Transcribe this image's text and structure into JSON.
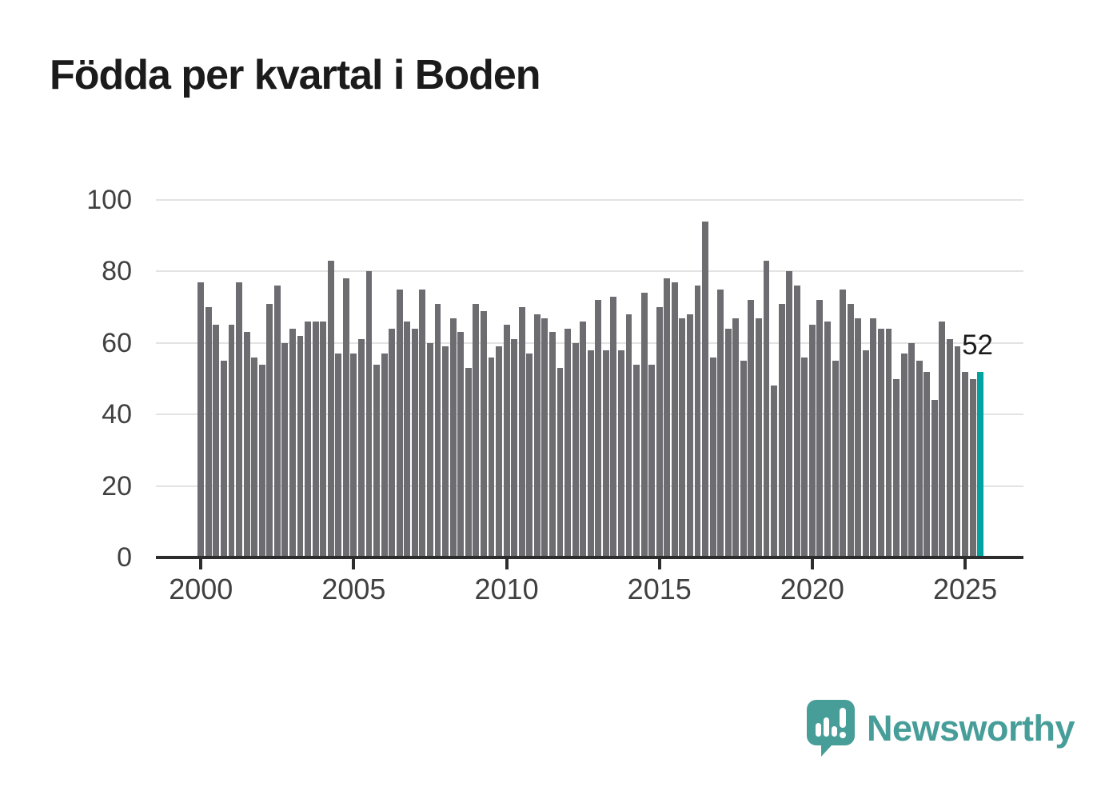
{
  "title": "Födda per kvartal i Boden",
  "chart_data": {
    "type": "bar",
    "title": "Födda per kvartal i Boden",
    "xlabel": "",
    "ylabel": "",
    "ylim": [
      0,
      100
    ],
    "y_ticks": [
      0,
      20,
      40,
      60,
      80,
      100
    ],
    "x_tick_labels": [
      "2000",
      "2005",
      "2010",
      "2015",
      "2020",
      "2025"
    ],
    "grid": "horizontal",
    "period": "quarterly",
    "start_quarter": "2000-Q1",
    "end_quarter": "2025-Q3",
    "series": [
      {
        "name": "Födda per kvartal",
        "values": [
          77,
          70,
          65,
          55,
          65,
          77,
          63,
          56,
          54,
          71,
          76,
          60,
          64,
          62,
          66,
          66,
          66,
          83,
          57,
          78,
          57,
          61,
          80,
          54,
          57,
          64,
          75,
          66,
          64,
          75,
          60,
          71,
          59,
          67,
          63,
          53,
          71,
          69,
          56,
          59,
          65,
          61,
          70,
          57,
          68,
          67,
          63,
          53,
          64,
          60,
          66,
          58,
          72,
          58,
          73,
          58,
          68,
          54,
          74,
          54,
          70,
          78,
          77,
          67,
          68,
          76,
          94,
          56,
          75,
          64,
          67,
          55,
          72,
          67,
          83,
          48,
          71,
          80,
          76,
          56,
          65,
          72,
          66,
          55,
          75,
          71,
          67,
          58,
          67,
          64,
          64,
          50,
          57,
          60,
          55,
          52,
          44,
          66,
          61,
          59,
          52,
          50,
          52
        ]
      }
    ],
    "highlight": {
      "index": 102,
      "value": 52,
      "label": "52"
    },
    "colors": {
      "bar": "#6c6c71",
      "highlight_bar": "#00a3a0",
      "axis": "#2d2d2d",
      "gridline": "#e3e3e3",
      "tick_text": "#404040",
      "title_text": "#1b1b1b"
    }
  },
  "annotation": {
    "last_value_label": "52"
  },
  "footer": {
    "brand": "Newsworthy",
    "brand_color": "#479e99",
    "logo_icon": "speech-bubble-bar-chart"
  }
}
